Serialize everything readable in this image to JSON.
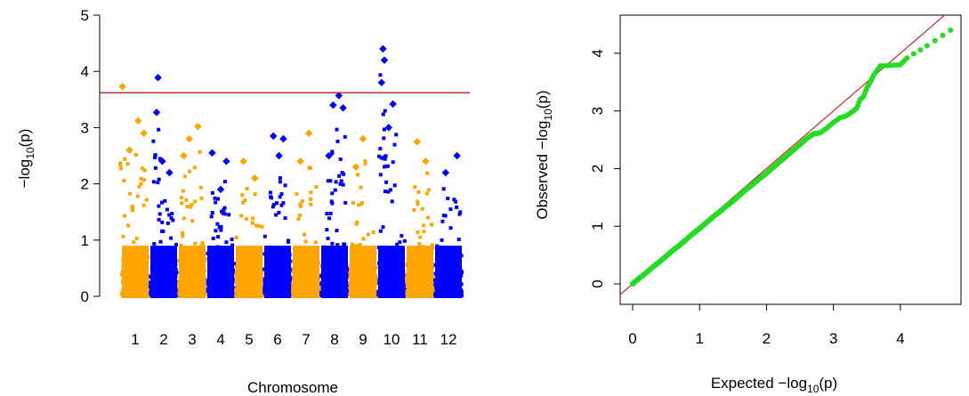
{
  "chart_data": [
    {
      "type": "scatter",
      "subtype": "manhattan",
      "title": "",
      "xlabel": "Chromosome",
      "ylabel": "-log10(p)",
      "ylabel_parts": {
        "pre": "−log",
        "sub": "10",
        "post": "(p)"
      },
      "ylim": [
        0,
        5
      ],
      "y_ticks": [
        0,
        1,
        2,
        3,
        4,
        5
      ],
      "threshold": 3.62,
      "threshold_color": "#b22222",
      "colors": [
        "#ffa500",
        "#0000ff"
      ],
      "chromosomes": [
        {
          "label": "1",
          "max": 3.73,
          "peaks": [
            [
              0.05,
              3.73
            ],
            [
              0.6,
              3.12
            ],
            [
              0.8,
              2.9
            ],
            [
              0.3,
              2.6
            ]
          ]
        },
        {
          "label": "2",
          "max": 3.89,
          "peaks": [
            [
              0.3,
              3.89
            ],
            [
              0.25,
              3.27
            ],
            [
              0.45,
              2.4
            ],
            [
              0.7,
              2.2
            ]
          ]
        },
        {
          "label": "3",
          "max": 3.02,
          "peaks": [
            [
              0.7,
              3.02
            ],
            [
              0.4,
              2.8
            ],
            [
              0.2,
              2.5
            ]
          ]
        },
        {
          "label": "4",
          "max": 2.55,
          "peaks": [
            [
              0.2,
              2.55
            ],
            [
              0.7,
              2.4
            ],
            [
              0.5,
              1.9
            ]
          ]
        },
        {
          "label": "5",
          "max": 2.4,
          "peaks": [
            [
              0.3,
              2.4
            ],
            [
              0.7,
              2.1
            ]
          ]
        },
        {
          "label": "6",
          "max": 2.85,
          "peaks": [
            [
              0.35,
              2.85
            ],
            [
              0.7,
              2.8
            ],
            [
              0.55,
              2.5
            ]
          ]
        },
        {
          "label": "7",
          "max": 2.9,
          "peaks": [
            [
              0.6,
              2.9
            ],
            [
              0.3,
              2.4
            ]
          ]
        },
        {
          "label": "8",
          "max": 3.57,
          "peaks": [
            [
              0.65,
              3.57
            ],
            [
              0.45,
              3.4
            ],
            [
              0.8,
              3.35
            ],
            [
              0.3,
              2.5
            ]
          ]
        },
        {
          "label": "9",
          "max": 2.8,
          "peaks": [
            [
              0.5,
              2.8
            ],
            [
              0.25,
              2.3
            ]
          ]
        },
        {
          "label": "10",
          "max": 4.4,
          "peaks": [
            [
              0.2,
              4.4
            ],
            [
              0.25,
              4.2
            ],
            [
              0.15,
              3.8
            ],
            [
              0.55,
              3.42
            ],
            [
              0.4,
              3.0
            ]
          ]
        },
        {
          "label": "11",
          "max": 2.75,
          "peaks": [
            [
              0.4,
              2.75
            ],
            [
              0.7,
              2.4
            ]
          ]
        },
        {
          "label": "12",
          "max": 2.5,
          "peaks": [
            [
              0.8,
              2.5
            ],
            [
              0.4,
              2.2
            ]
          ]
        }
      ]
    },
    {
      "type": "scatter",
      "subtype": "qq",
      "title": "",
      "xlabel": "Expected -log10(p)",
      "ylabel": "Observed -log10(p)",
      "xlabel_parts": {
        "pre": "Expected  −log",
        "sub": "10",
        "post": "(p)"
      },
      "ylabel_parts": {
        "pre": "Observed  −log",
        "sub": "10",
        "post": "(p)"
      },
      "xlim": [
        0,
        4.8
      ],
      "ylim": [
        0,
        4.6
      ],
      "x_ticks": [
        0,
        1,
        2,
        3,
        4
      ],
      "y_ticks": [
        0,
        1,
        2,
        3,
        4
      ],
      "point_color": "#22dd22",
      "line_color": "#dd0000",
      "points": [
        [
          0.0,
          0.0
        ],
        [
          0.1,
          0.1
        ],
        [
          0.2,
          0.19
        ],
        [
          0.3,
          0.29
        ],
        [
          0.4,
          0.38
        ],
        [
          0.5,
          0.48
        ],
        [
          0.6,
          0.58
        ],
        [
          0.7,
          0.67
        ],
        [
          0.8,
          0.77
        ],
        [
          0.9,
          0.87
        ],
        [
          1.0,
          0.96
        ],
        [
          1.1,
          1.06
        ],
        [
          1.2,
          1.16
        ],
        [
          1.3,
          1.25
        ],
        [
          1.4,
          1.35
        ],
        [
          1.5,
          1.44
        ],
        [
          1.6,
          1.54
        ],
        [
          1.7,
          1.64
        ],
        [
          1.8,
          1.73
        ],
        [
          1.9,
          1.83
        ],
        [
          2.0,
          1.92
        ],
        [
          2.1,
          2.02
        ],
        [
          2.2,
          2.12
        ],
        [
          2.3,
          2.22
        ],
        [
          2.4,
          2.32
        ],
        [
          2.5,
          2.42
        ],
        [
          2.6,
          2.52
        ],
        [
          2.7,
          2.6
        ],
        [
          2.8,
          2.62
        ],
        [
          2.9,
          2.7
        ],
        [
          3.0,
          2.8
        ],
        [
          3.1,
          2.88
        ],
        [
          3.2,
          2.92
        ],
        [
          3.3,
          3.0
        ],
        [
          3.35,
          3.05
        ],
        [
          3.4,
          3.2
        ],
        [
          3.45,
          3.25
        ],
        [
          3.5,
          3.4
        ],
        [
          3.55,
          3.5
        ],
        [
          3.6,
          3.62
        ],
        [
          3.7,
          3.78
        ],
        [
          3.85,
          3.79
        ],
        [
          4.0,
          3.8
        ],
        [
          4.1,
          3.92
        ],
        [
          4.4,
          4.13
        ],
        [
          4.75,
          4.4
        ]
      ]
    }
  ]
}
